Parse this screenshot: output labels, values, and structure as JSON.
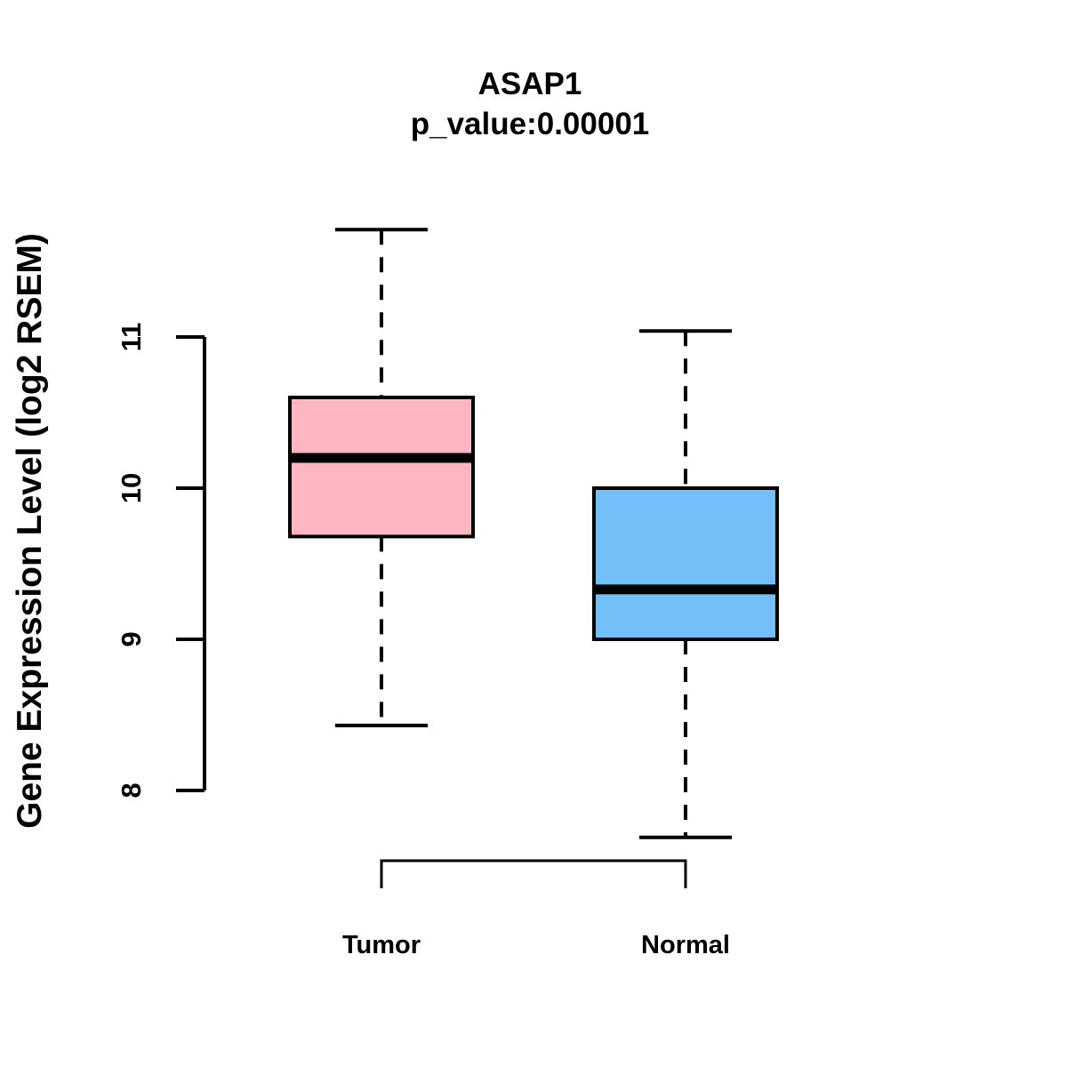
{
  "title": "ASAP1",
  "subtitle": "p_value:0.00001",
  "chart_data": {
    "type": "boxplot",
    "title": "ASAP1",
    "subtitle": "p_value:0.00001",
    "ylabel": "Gene Expression Level (log2 RSEM)",
    "xlabel": "",
    "categories": [
      "Tumor",
      "Normal"
    ],
    "yticks": [
      8,
      9,
      10,
      11
    ],
    "ylim": [
      7.55,
      11.8
    ],
    "grid": false,
    "legend": "none",
    "comparison_bracket": true,
    "series": [
      {
        "name": "Tumor",
        "color": "#FFB6C1",
        "lower_whisker": 8.43,
        "q1": 9.68,
        "median": 10.2,
        "q3": 10.6,
        "upper_whisker": 11.71
      },
      {
        "name": "Normal",
        "color": "#73BFF7",
        "lower_whisker": 7.69,
        "q1": 9.0,
        "median": 9.33,
        "q3": 10.0,
        "upper_whisker": 11.04
      }
    ],
    "line_color": "#000000"
  }
}
